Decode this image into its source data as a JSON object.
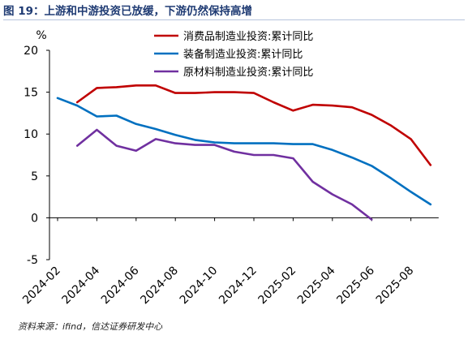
{
  "header": {
    "title": "图 19：上游和中游投资已放缓，下游仍然保持高增"
  },
  "footer": {
    "source": "资料来源：ifind，信达证券研发中心"
  },
  "chart_data": {
    "type": "line",
    "unit_label": "%",
    "ylim": [
      -5,
      20
    ],
    "yticks": [
      -5,
      0,
      5,
      10,
      15,
      20
    ],
    "x_ticks": [
      "2024-02",
      "2024-04",
      "2024-06",
      "2024-08",
      "2024-10",
      "2024-12",
      "2025-02",
      "2025-04",
      "2025-06",
      "2025-08"
    ],
    "x": [
      "2024-02",
      "2024-03",
      "2024-04",
      "2024-05",
      "2024-06",
      "2024-07",
      "2024-08",
      "2024-09",
      "2024-10",
      "2024-11",
      "2024-12",
      "2025-01",
      "2025-02",
      "2025-03",
      "2025-04",
      "2025-05",
      "2025-06",
      "2025-07",
      "2025-08",
      "2025-09"
    ],
    "legend_position": "top-right",
    "grid": false,
    "series": [
      {
        "name": "消费品制造业投资:累计同比",
        "color": "#c00000",
        "values": [
          null,
          13.8,
          15.5,
          15.6,
          15.8,
          15.8,
          14.9,
          14.9,
          15.0,
          15.0,
          14.9,
          13.8,
          12.8,
          13.5,
          13.4,
          13.2,
          12.3,
          11.0,
          9.4,
          6.3
        ]
      },
      {
        "name": "装备制造业投资:累计同比",
        "color": "#0070c0",
        "values": [
          14.3,
          13.4,
          12.1,
          12.2,
          11.2,
          10.6,
          9.9,
          9.3,
          9.0,
          8.9,
          8.9,
          8.9,
          8.8,
          8.8,
          8.1,
          7.2,
          6.2,
          4.7,
          3.1,
          1.6
        ]
      },
      {
        "name": "原材料制造业投资:累计同比",
        "color": "#7030a0",
        "values": [
          null,
          8.6,
          10.5,
          8.6,
          8.0,
          9.4,
          8.9,
          8.7,
          8.7,
          7.9,
          7.5,
          7.5,
          7.1,
          4.3,
          2.8,
          1.6,
          -0.2,
          null,
          null,
          null
        ]
      }
    ]
  }
}
